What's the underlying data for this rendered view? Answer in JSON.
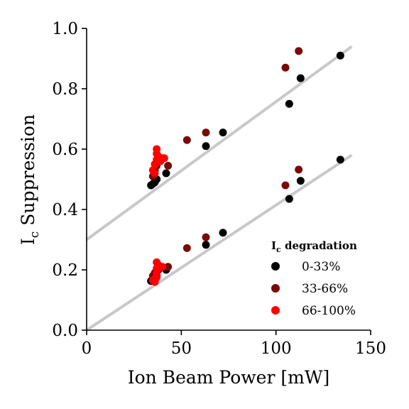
{
  "chart_data": {
    "type": "scatter",
    "ylabel_main": "I",
    "ylabel_sub": "c",
    "ylabel_rest": " Suppression",
    "xlabel": "Ion Beam Power [mW]",
    "xlim": [
      0,
      150
    ],
    "ylim": [
      0.0,
      1.0
    ],
    "xticks": [
      0,
      50,
      100,
      150
    ],
    "yticks": [
      0.0,
      0.2,
      0.4,
      0.6,
      0.8,
      1.0
    ],
    "xtick_labels": [
      "0",
      "50",
      "100",
      "150"
    ],
    "ytick_labels": [
      "0.0",
      "0.2",
      "0.4",
      "0.6",
      "0.8",
      "1.0"
    ],
    "grid": false,
    "legend": {
      "title_main": "I",
      "title_sub": "c",
      "title_rest": " degradation",
      "placement": "lower-right"
    },
    "fit_lines": [
      {
        "x": [
          0,
          140
        ],
        "y": [
          0.3,
          0.94
        ],
        "color": "#c8c8c8"
      },
      {
        "x": [
          0,
          140
        ],
        "y": [
          0.0,
          0.58
        ],
        "color": "#c8c8c8"
      }
    ],
    "series": [
      {
        "name": "0-33%",
        "color": "#000000",
        "points": [
          [
            34,
            0.48
          ],
          [
            35,
            0.485
          ],
          [
            36,
            0.49
          ],
          [
            37,
            0.5
          ],
          [
            42,
            0.52
          ],
          [
            63,
            0.61
          ],
          [
            72,
            0.655
          ],
          [
            107,
            0.75
          ],
          [
            113,
            0.835
          ],
          [
            134,
            0.91
          ],
          [
            34,
            0.163
          ],
          [
            35,
            0.168
          ],
          [
            36,
            0.172
          ],
          [
            37,
            0.18
          ],
          [
            42,
            0.2
          ],
          [
            63,
            0.283
          ],
          [
            72,
            0.323
          ],
          [
            107,
            0.435
          ],
          [
            113,
            0.495
          ],
          [
            134,
            0.565
          ]
        ]
      },
      {
        "name": "33-66%",
        "color": "#7a0a0a",
        "points": [
          [
            35,
            0.51
          ],
          [
            36,
            0.53
          ],
          [
            37,
            0.545
          ],
          [
            43,
            0.545
          ],
          [
            53,
            0.63
          ],
          [
            63,
            0.655
          ],
          [
            105,
            0.87
          ],
          [
            112,
            0.925
          ],
          [
            35,
            0.18
          ],
          [
            36,
            0.19
          ],
          [
            38,
            0.2
          ],
          [
            43,
            0.21
          ],
          [
            53,
            0.272
          ],
          [
            63,
            0.308
          ],
          [
            105,
            0.48
          ],
          [
            112,
            0.532
          ]
        ]
      },
      {
        "name": "66-100%",
        "color": "#ff0000",
        "points": [
          [
            35,
            0.53
          ],
          [
            36,
            0.55
          ],
          [
            37,
            0.565
          ],
          [
            37,
            0.585
          ],
          [
            37,
            0.6
          ],
          [
            38,
            0.575
          ],
          [
            39,
            0.56
          ],
          [
            40,
            0.57
          ],
          [
            41,
            0.57
          ],
          [
            36,
            0.52
          ],
          [
            35,
            0.165
          ],
          [
            36,
            0.17
          ],
          [
            37,
            0.175
          ],
          [
            37,
            0.19
          ],
          [
            37,
            0.205
          ],
          [
            37,
            0.225
          ],
          [
            38,
            0.215
          ],
          [
            39,
            0.21
          ],
          [
            40,
            0.21
          ],
          [
            36,
            0.16
          ]
        ]
      }
    ]
  }
}
